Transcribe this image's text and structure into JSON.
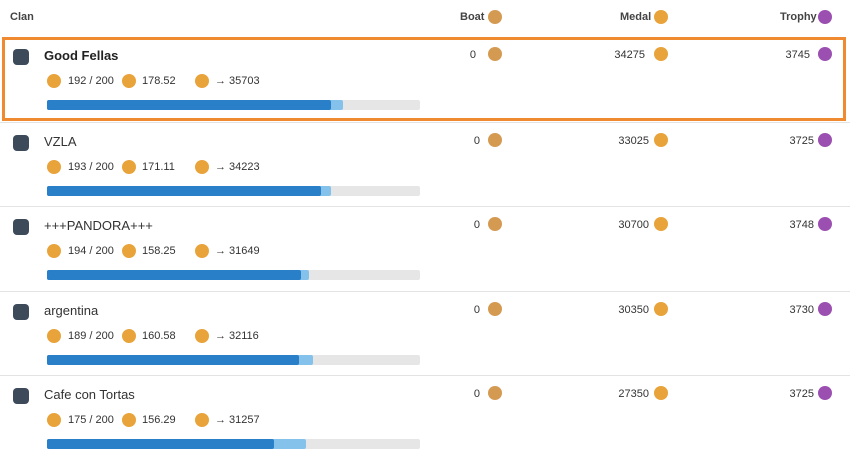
{
  "header": {
    "clan": "Clan",
    "boat": "Boat",
    "medal": "Medal",
    "trophy": "Trophy"
  },
  "rows": [
    {
      "name": "Good Fellas",
      "members": "192 / 200",
      "average": 178.52,
      "projection": 35703,
      "boat": 0,
      "medal": 34275,
      "trophy": 3745
    },
    {
      "name": "VZLA",
      "members": "193 / 200",
      "average": 171.11,
      "projection": 34223,
      "boat": 0,
      "medal": 33025,
      "trophy": 3725
    },
    {
      "name": "+++PANDORA+++",
      "members": "194 / 200",
      "average": 158.25,
      "projection": 31649,
      "boat": 0,
      "medal": 30700,
      "trophy": 3748
    },
    {
      "name": "argentina",
      "members": "189 / 200",
      "average": 160.58,
      "projection": 32116,
      "boat": 0,
      "medal": 30350,
      "trophy": 3730
    },
    {
      "name": "Cafe con Tortas",
      "members": "175 / 200",
      "average": 156.29,
      "projection": 31257,
      "boat": 0,
      "medal": 27350,
      "trophy": 3725
    }
  ]
}
